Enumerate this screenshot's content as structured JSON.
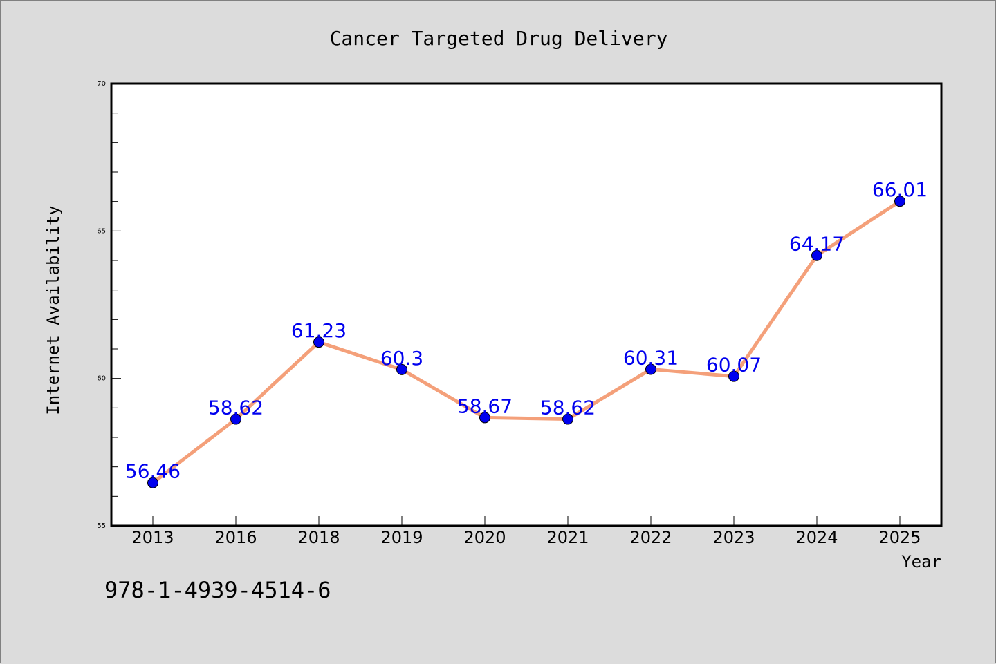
{
  "chart_data": {
    "type": "line",
    "title": "Cancer Targeted Drug Delivery",
    "xlabel": "Year",
    "ylabel": "Internet Availability",
    "categories": [
      "2013",
      "2016",
      "2018",
      "2019",
      "2020",
      "2021",
      "2022",
      "2023",
      "2024",
      "2025"
    ],
    "series": [
      {
        "values": [
          56.46,
          58.62,
          61.23,
          60.3,
          58.67,
          58.62,
          60.31,
          60.07,
          64.17,
          66.01
        ]
      }
    ],
    "data_labels": [
      "56.46",
      "58.62",
      "61.23",
      "60.3",
      "58.67",
      "58.62",
      "60.31",
      "60.07",
      "64.17",
      "66.01"
    ],
    "ylim": [
      55,
      70
    ],
    "yticks": [
      55,
      60,
      65,
      70
    ],
    "ytick_labels": [
      "55",
      "60",
      "65",
      "70"
    ],
    "line_color": "#f4a07a",
    "marker_color": "#0000ee",
    "label_color": "#0000ee",
    "grid": false,
    "legend": "none"
  },
  "footer": {
    "isbn": "978-1-4939-4514-6"
  }
}
